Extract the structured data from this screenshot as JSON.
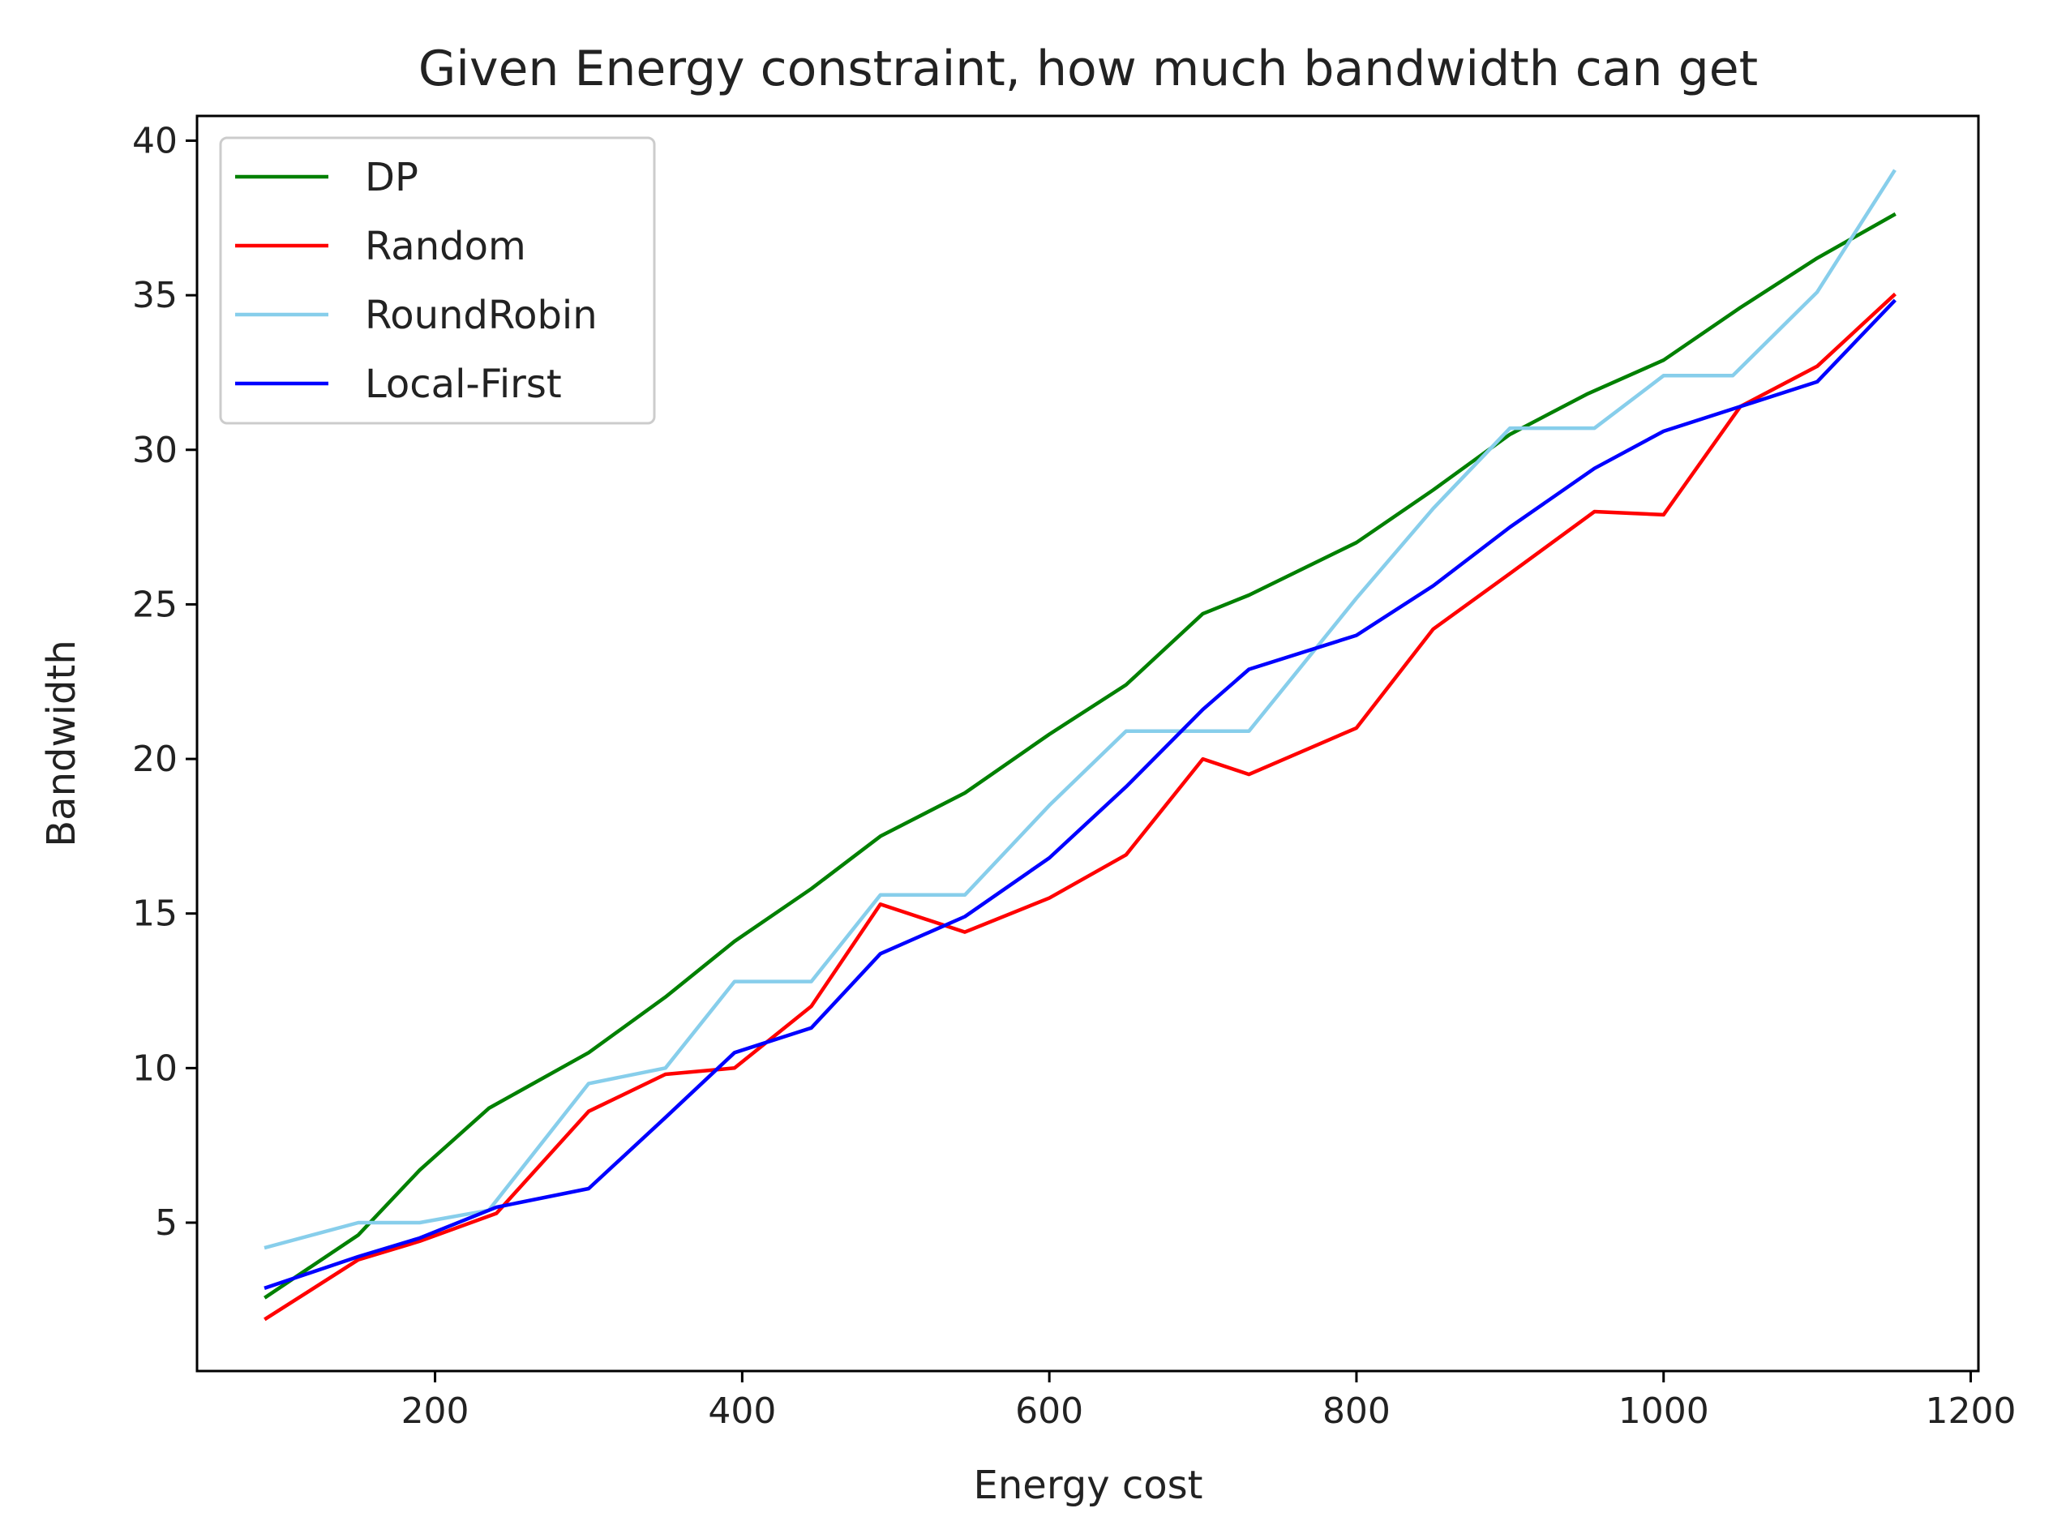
{
  "chart_data": {
    "type": "line",
    "title": "Given Energy constraint, how much bandwidth can get",
    "xlabel": "Energy cost",
    "ylabel": "Bandwidth",
    "xlim": [
      45,
      1205
    ],
    "ylim": [
      0.2,
      40.8
    ],
    "xticks": [
      200,
      400,
      600,
      800,
      1000,
      1200
    ],
    "yticks": [
      5,
      10,
      15,
      20,
      25,
      30,
      35,
      40
    ],
    "grid": false,
    "legend_position": "top-left",
    "series": [
      {
        "name": "DP",
        "color": "#008000",
        "x": [
          90,
          150,
          190,
          235,
          300,
          350,
          395,
          445,
          490,
          545,
          600,
          650,
          700,
          730,
          800,
          850,
          900,
          950,
          1000,
          1050,
          1100,
          1150
        ],
        "y": [
          2.6,
          4.6,
          6.7,
          8.7,
          10.5,
          12.3,
          14.1,
          15.8,
          17.5,
          18.9,
          20.8,
          22.4,
          24.7,
          25.3,
          27.0,
          28.7,
          30.5,
          31.8,
          32.9,
          34.6,
          36.2,
          37.6
        ]
      },
      {
        "name": "Random",
        "color": "#ff0000",
        "x": [
          90,
          150,
          190,
          240,
          300,
          350,
          395,
          445,
          490,
          545,
          600,
          650,
          700,
          730,
          800,
          850,
          900,
          955,
          1000,
          1050,
          1100,
          1150
        ],
        "y": [
          1.9,
          3.8,
          4.4,
          5.3,
          8.6,
          9.8,
          10.0,
          12.0,
          15.3,
          14.4,
          15.5,
          16.9,
          20.0,
          19.5,
          21.0,
          24.2,
          26.0,
          28.0,
          27.9,
          31.4,
          32.7,
          35.0
        ]
      },
      {
        "name": "RoundRobin",
        "color": "#87ceeb",
        "x": [
          90,
          150,
          190,
          235,
          300,
          350,
          395,
          445,
          490,
          545,
          600,
          650,
          700,
          730,
          800,
          850,
          900,
          955,
          1000,
          1045,
          1100,
          1150
        ],
        "y": [
          4.2,
          5.0,
          5.0,
          5.4,
          9.5,
          10.0,
          12.8,
          12.8,
          15.6,
          15.6,
          18.5,
          20.9,
          20.9,
          20.9,
          25.2,
          28.1,
          30.7,
          30.7,
          32.4,
          32.4,
          35.1,
          39.0
        ]
      },
      {
        "name": "Local-First",
        "color": "#0000ff",
        "x": [
          90,
          150,
          190,
          240,
          300,
          350,
          395,
          445,
          490,
          545,
          600,
          650,
          700,
          730,
          800,
          850,
          900,
          955,
          1000,
          1050,
          1100,
          1150
        ],
        "y": [
          2.9,
          3.9,
          4.5,
          5.5,
          6.1,
          8.4,
          10.5,
          11.3,
          13.7,
          14.9,
          16.8,
          19.1,
          21.6,
          22.9,
          24.0,
          25.6,
          27.5,
          29.4,
          30.6,
          31.4,
          32.2,
          34.8
        ]
      }
    ]
  }
}
